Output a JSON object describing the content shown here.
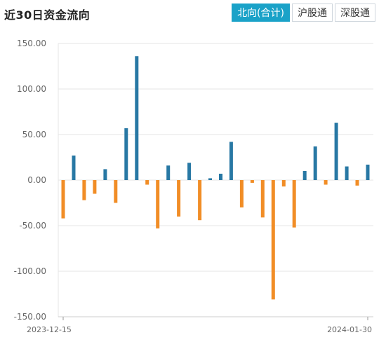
{
  "header": {
    "title": "近30日资金流向",
    "tabs": [
      {
        "label": "北向(合计)",
        "active": true
      },
      {
        "label": "沪股通",
        "active": false
      },
      {
        "label": "深股通",
        "active": false
      }
    ]
  },
  "colors": {
    "positive": "#2878a4",
    "negative": "#f18d26",
    "accent": "#1aa2c8"
  },
  "chart_data": {
    "type": "bar",
    "title": "近30日资金流向",
    "ylim": [
      -150,
      150
    ],
    "yticks": [
      "150.00",
      "100.00",
      "50.00",
      "0.00",
      "-50.00",
      "-100.00",
      "-150.00"
    ],
    "ytick_values": [
      150,
      100,
      50,
      0,
      -50,
      -100,
      -150
    ],
    "x_start_label": "2023-12-15",
    "x_end_label": "2024-01-30",
    "values": [
      -42,
      27,
      -22,
      -15,
      12,
      -25,
      57,
      136,
      -5,
      -53,
      16,
      -40,
      19,
      -44,
      2,
      7,
      42,
      -30,
      -3,
      -41,
      -131,
      -7,
      -52,
      10,
      37,
      -5,
      63,
      15,
      -6,
      17
    ],
    "grid": true,
    "legend": "none"
  }
}
